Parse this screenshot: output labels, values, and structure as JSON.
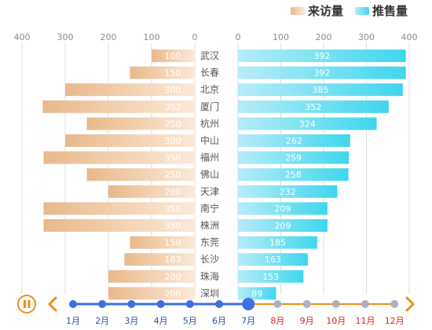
{
  "legend": {
    "visits": "来访量",
    "sales": "推售量"
  },
  "colors": {
    "visits_start": "#e8b98a",
    "visits_end": "#fbe9d9",
    "sales_start": "#b6ecf7",
    "sales_end": "#3fd6ee",
    "axis_grid": "#dddddd",
    "timeline_played": "#3d6fe0",
    "timeline_future": "#f08c1a",
    "month_active": "#2a4ea8",
    "month_future": "#e02020",
    "future_dot": "#aab2c8"
  },
  "chart_data": {
    "type": "bar",
    "orientation": "horizontal-mirrored",
    "categories": [
      "武汉",
      "长春",
      "北京",
      "厦门",
      "杭州",
      "中山",
      "福州",
      "佛山",
      "天津",
      "南宁",
      "株洲",
      "东莞",
      "长沙",
      "珠海",
      "深圳"
    ],
    "series": [
      {
        "name": "来访量",
        "values": [
          100,
          150,
          300,
          352,
          250,
          300,
          350,
          250,
          200,
          350,
          350,
          150,
          163,
          200,
          200
        ]
      },
      {
        "name": "推售量",
        "values": [
          392,
          392,
          385,
          352,
          324,
          262,
          259,
          258,
          232,
          209,
          209,
          185,
          163,
          153,
          89
        ]
      }
    ],
    "left_axis": {
      "ticks": [
        400,
        300,
        200,
        100,
        0
      ],
      "xlim": [
        0,
        400
      ]
    },
    "right_axis": {
      "ticks": [
        0,
        100,
        200,
        300,
        400
      ],
      "xlim": [
        0,
        400
      ]
    },
    "legend_position": "top-right",
    "grid": true
  },
  "timeline": {
    "months": [
      "1月",
      "2月",
      "3月",
      "4月",
      "5月",
      "6月",
      "7月",
      "8月",
      "9月",
      "10月",
      "11月",
      "12月"
    ],
    "current_index": 6,
    "play_state": "paused"
  }
}
